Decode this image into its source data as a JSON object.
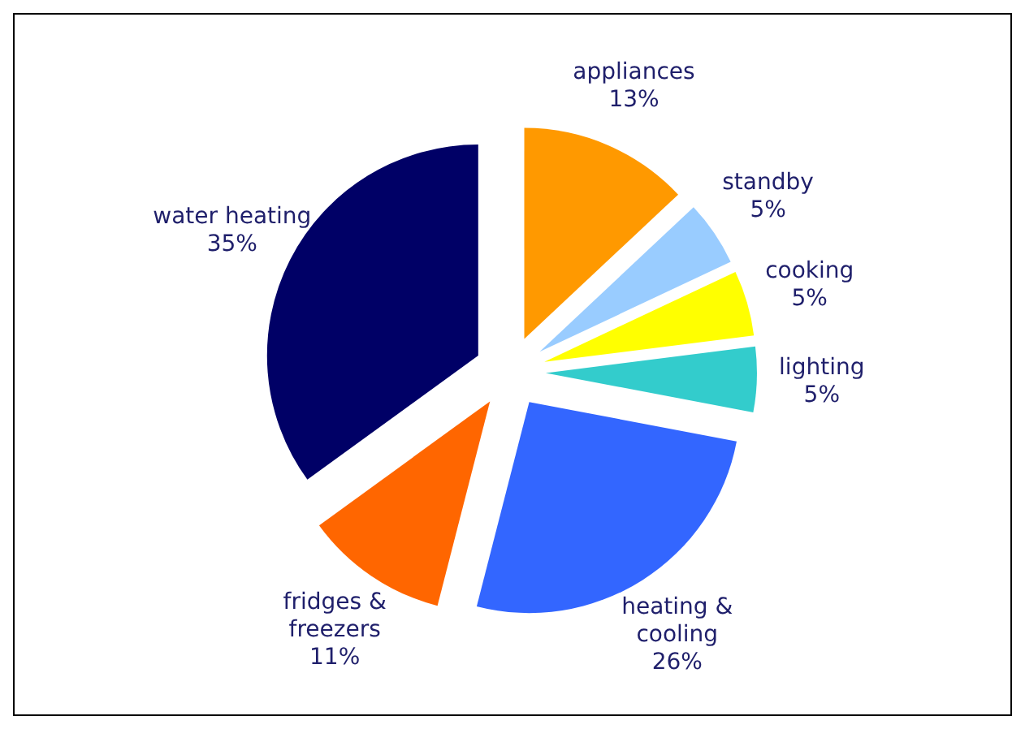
{
  "chart_data": {
    "type": "pie",
    "categories": [
      "appliances",
      "standby",
      "cooking",
      "lighting",
      "heating & cooling",
      "fridges & freezers",
      "water heating"
    ],
    "values": [
      13,
      5,
      5,
      5,
      26,
      11,
      35
    ],
    "value_labels": [
      "13%",
      "5%",
      "5%",
      "5%",
      "26%",
      "11%",
      "35%"
    ],
    "colors": [
      "#ff9900",
      "#99ccff",
      "#ffff00",
      "#33cccc",
      "#3366ff",
      "#ff6600",
      "#000066"
    ]
  }
}
